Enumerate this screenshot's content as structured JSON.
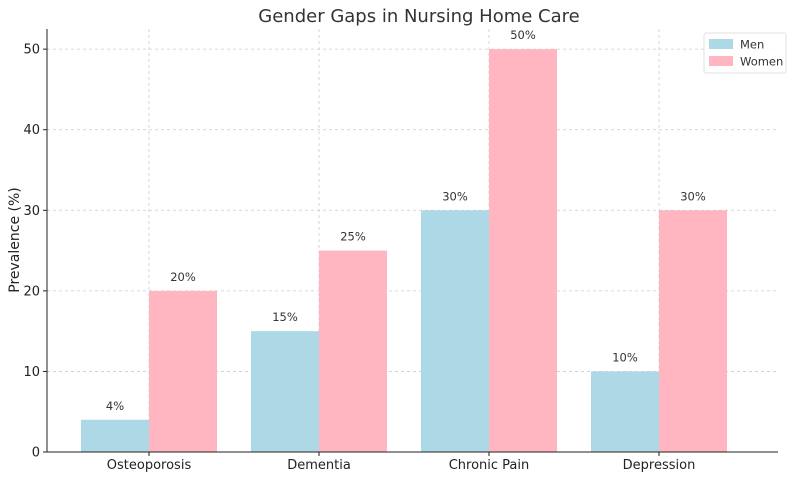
{
  "chart_data": {
    "type": "bar",
    "title": "Gender Gaps in Nursing Home Care",
    "xlabel": "",
    "ylabel": "Prevalence (%)",
    "categories": [
      "Osteoporosis",
      "Dementia",
      "Chronic Pain",
      "Depression"
    ],
    "series": [
      {
        "name": "Men",
        "values": [
          4,
          15,
          30,
          10
        ],
        "labels": [
          "4%",
          "15%",
          "30%",
          "10%"
        ],
        "color": "#add8e6"
      },
      {
        "name": "Women",
        "values": [
          20,
          25,
          50,
          30
        ],
        "labels": [
          "20%",
          "25%",
          "50%",
          "30%"
        ],
        "color": "#ffb6c1"
      }
    ],
    "ylim": [
      0,
      52.5
    ],
    "yticks": [
      0,
      10,
      20,
      30,
      40,
      50
    ],
    "grid": true,
    "legend_position": "top-right"
  }
}
